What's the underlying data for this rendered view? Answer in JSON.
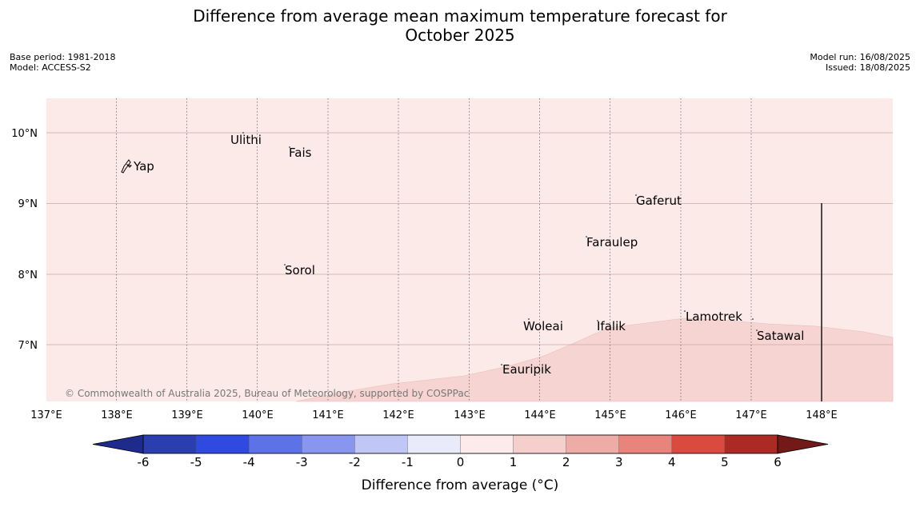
{
  "header": {
    "title_line1": "Difference from average mean maximum temperature forecast for",
    "title_line2": "October 2025",
    "base_period": "Base period: 1981-2018",
    "model": "Model: ACCESS-S2",
    "model_run": "Model run: 16/08/2025",
    "issued": "Issued: 18/08/2025"
  },
  "map": {
    "lon_ticks": [
      "137°E",
      "138°E",
      "139°E",
      "140°E",
      "141°E",
      "142°E",
      "143°E",
      "144°E",
      "145°E",
      "146°E",
      "147°E",
      "148°E"
    ],
    "lat_ticks": [
      "10°N",
      "9°N",
      "8°N",
      "7°N"
    ],
    "places": [
      "Yap",
      "Ulithi",
      "Fais",
      "Gaferut",
      "Faraulep",
      "Sorol",
      "Woleai",
      "Ifalik",
      "Lamotrek",
      "Satawal",
      "Eauripik"
    ],
    "copyright": "© Commonwealth of Australia 2025, Bureau of Meteorology, supported by COSPPac",
    "colors": {
      "zone_0_1": "#fbeae8",
      "zone_1_2": "#f6d4d2",
      "grid": "#c9a9a8"
    }
  },
  "colorbar": {
    "label": "Difference from average (°C)",
    "tick_labels": [
      "-6",
      "-5",
      "-4",
      "-3",
      "-2",
      "-1",
      "0",
      "1",
      "2",
      "3",
      "4",
      "5",
      "6"
    ],
    "colors": [
      "#1e2a8c",
      "#2a3eb0",
      "#2f4ae0",
      "#5c72e6",
      "#8896ef",
      "#c0c6f6",
      "#e9ebfb",
      "#fdeaea",
      "#f4cfcc",
      "#eeaca6",
      "#e9847c",
      "#db4a3e",
      "#ad2a24",
      "#731a18"
    ]
  }
}
